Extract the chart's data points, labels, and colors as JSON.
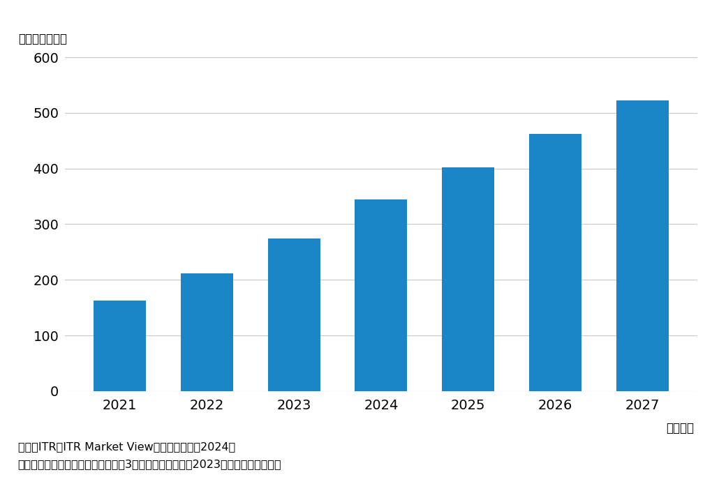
{
  "categories": [
    "2021",
    "2022",
    "2023",
    "2024",
    "2025",
    "2026",
    "2027"
  ],
  "values": [
    163,
    212,
    274,
    344,
    402,
    462,
    523
  ],
  "bar_color": "#1a86c8",
  "ylim": [
    0,
    600
  ],
  "yticks": [
    0,
    100,
    200,
    300,
    400,
    500,
    600
  ],
  "unit_label": "（単位：億円）",
  "xlabel": "（年度）",
  "source_line1": "出典：ITR『ITR Market View：人材管理市场2024』",
  "source_line2": "＊ベンダーの売上金額を対象とし，3月期ベースで換算。2023年度以降は予測値。",
  "background_color": "#ffffff",
  "grid_color": "#c8c8c8",
  "bar_width": 0.6,
  "tick_fontsize": 14,
  "label_fontsize": 12,
  "source_fontsize": 11.5
}
